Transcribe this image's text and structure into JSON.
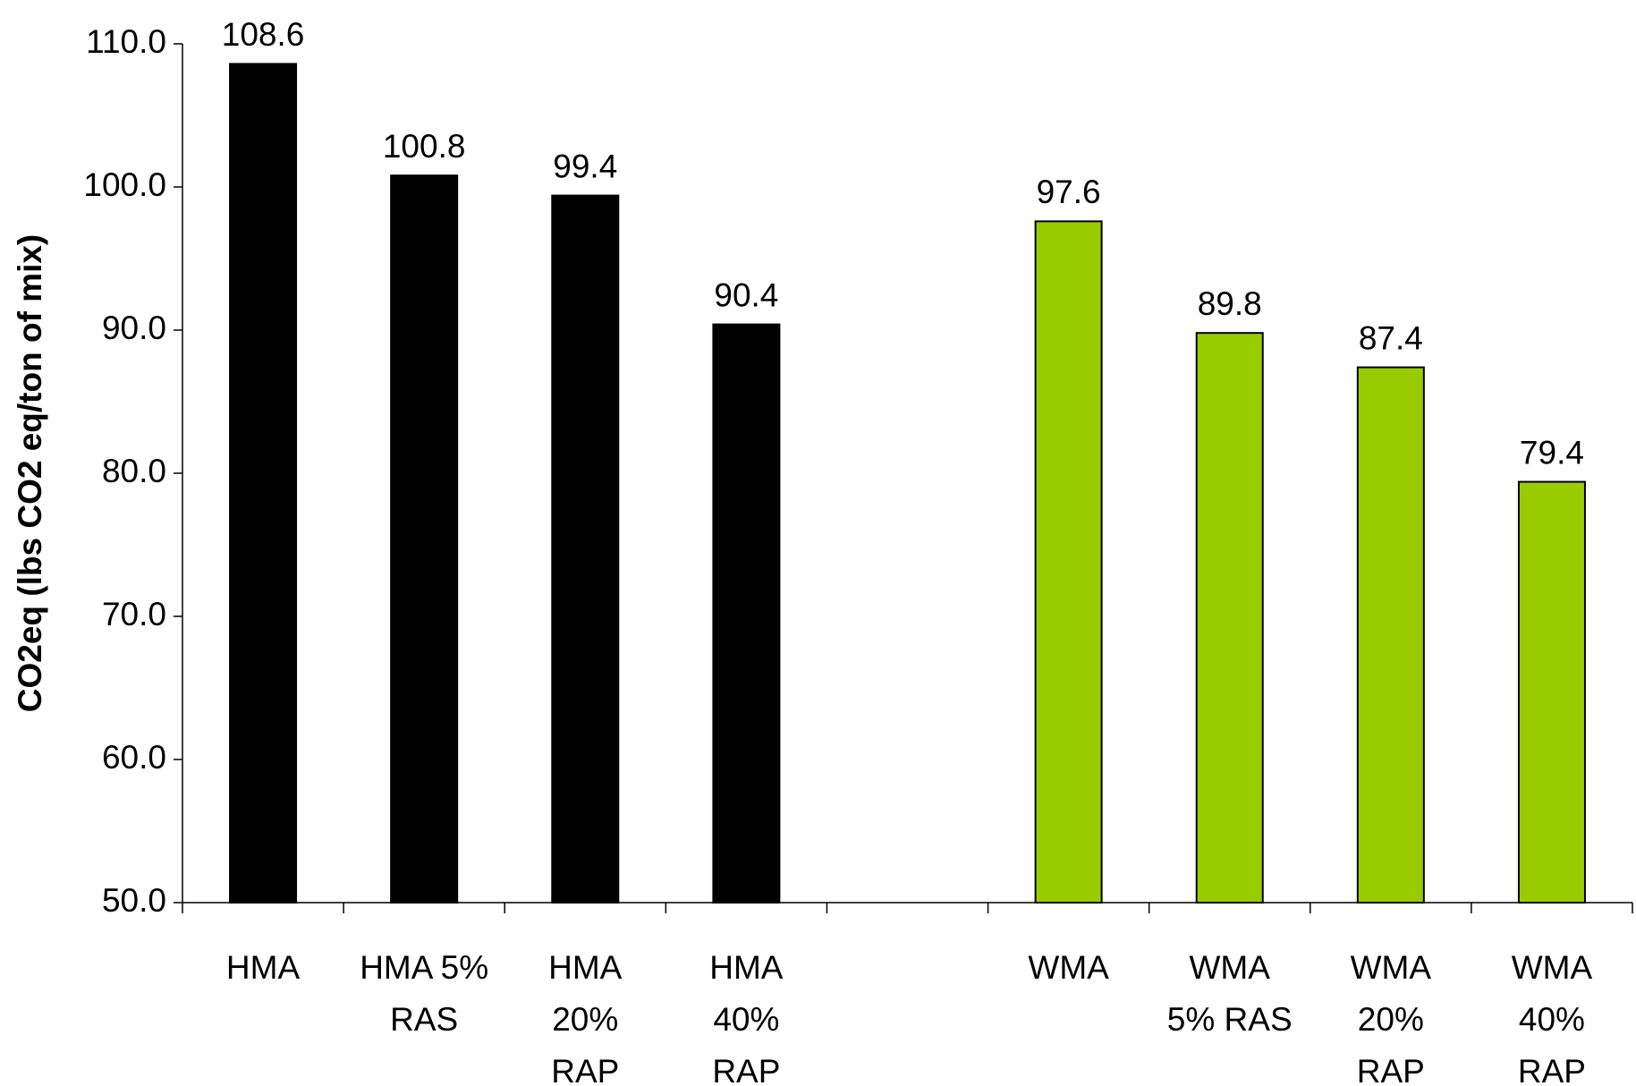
{
  "chart_data": {
    "type": "bar",
    "ylabel": "CO2eq (lbs CO2 eq/ton of mix)",
    "categories": [
      "HMA",
      "HMA 5%\nRAS",
      "HMA\n20%\nRAP",
      "HMA\n40%\nRAP",
      null,
      "WMA",
      "WMA\n5% RAS",
      "WMA\n20%\nRAP",
      "WMA\n40%\nRAP"
    ],
    "values": [
      108.6,
      100.8,
      99.4,
      90.4,
      null,
      97.6,
      89.8,
      87.4,
      79.4
    ],
    "colors": [
      "#000000",
      "#000000",
      "#000000",
      "#000000",
      null,
      "#99cc00",
      "#99cc00",
      "#99cc00",
      "#99cc00"
    ],
    "ylim": [
      50,
      110
    ],
    "yticks": [
      {
        "value": 50,
        "label": "50.0"
      },
      {
        "value": 60,
        "label": "60.0"
      },
      {
        "value": 70,
        "label": "70.0"
      },
      {
        "value": 80,
        "label": "80.0"
      },
      {
        "value": 90,
        "label": "90.0"
      },
      {
        "value": 100,
        "label": "100.0"
      },
      {
        "value": 110,
        "label": "110.0"
      }
    ],
    "grid": false
  }
}
